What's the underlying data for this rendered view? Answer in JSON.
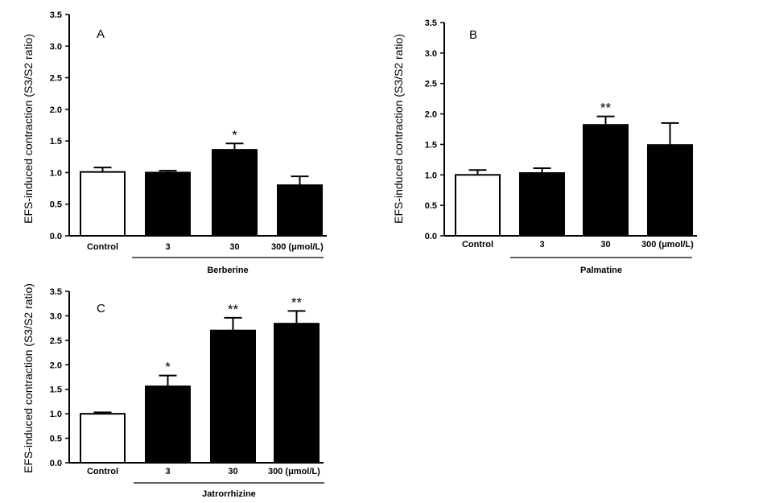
{
  "chart_data": [
    {
      "type": "bar",
      "panel_label": "A",
      "ylabel": "EFS-induced contraction (S3/S2 ratio)",
      "ylim": [
        0,
        3.5
      ],
      "yticks": [
        "0.0",
        "0.5",
        "1.0",
        "1.5",
        "2.0",
        "2.5",
        "3.0",
        "3.5"
      ],
      "categories": [
        "Control",
        "3",
        "30",
        "300 (μmol/L)"
      ],
      "values": [
        1.01,
        1.0,
        1.36,
        0.8
      ],
      "errors": [
        0.07,
        0.03,
        0.1,
        0.14
      ],
      "significance": [
        "",
        "",
        "*",
        ""
      ],
      "bar_colors": [
        "#ffffff",
        "#000000",
        "#000000",
        "#000000"
      ],
      "group_label": "Berberine",
      "grid": false,
      "legend": "none"
    },
    {
      "type": "bar",
      "panel_label": "B",
      "ylabel": "EFS-induced contraction (S3/S2 ratio)",
      "ylim": [
        0,
        3.5
      ],
      "yticks": [
        "0.0",
        "0.5",
        "1.0",
        "1.5",
        "2.0",
        "2.5",
        "3.0",
        "3.5"
      ],
      "categories": [
        "Control",
        "3",
        "30",
        "300 (μmol/L)"
      ],
      "values": [
        1.0,
        1.03,
        1.82,
        1.49
      ],
      "errors": [
        0.08,
        0.08,
        0.14,
        0.36
      ],
      "significance": [
        "",
        "",
        "**",
        ""
      ],
      "bar_colors": [
        "#ffffff",
        "#000000",
        "#000000",
        "#000000"
      ],
      "group_label": "Palmatine",
      "grid": false,
      "legend": "none"
    },
    {
      "type": "bar",
      "panel_label": "C",
      "ylabel": "EFS-induced contraction (S3/S2 ratio)",
      "ylim": [
        0,
        3.5
      ],
      "yticks": [
        "0.0",
        "0.5",
        "1.0",
        "1.5",
        "2.0",
        "2.5",
        "3.0",
        "3.5"
      ],
      "categories": [
        "Control",
        "3",
        "30",
        "300 (μmol/L)"
      ],
      "values": [
        1.0,
        1.56,
        2.7,
        2.84
      ],
      "errors": [
        0.03,
        0.22,
        0.26,
        0.26
      ],
      "significance": [
        "",
        "*",
        "**",
        "**"
      ],
      "bar_colors": [
        "#ffffff",
        "#000000",
        "#000000",
        "#000000"
      ],
      "group_label": "Jatrorrhizine",
      "grid": false,
      "legend": "none"
    }
  ]
}
